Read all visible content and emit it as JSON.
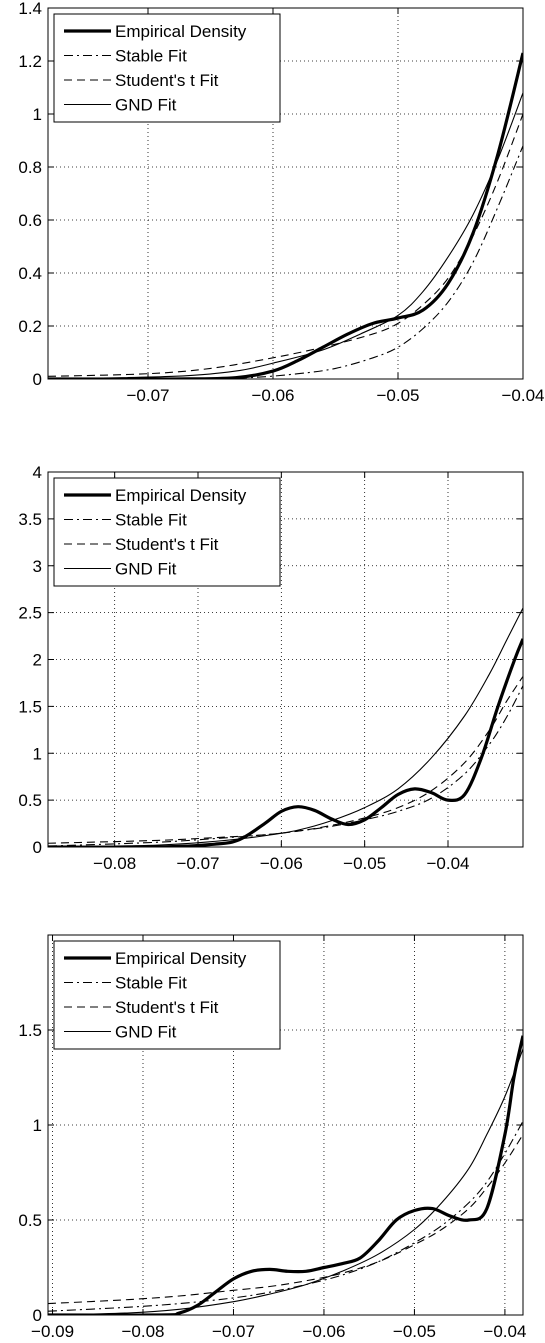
{
  "chart_data": [
    {
      "type": "line",
      "xlim": [
        -0.078,
        -0.04
      ],
      "ylim": [
        0,
        1.4
      ],
      "xticks": [
        -0.07,
        -0.06,
        -0.05,
        -0.04
      ],
      "xtick_labels": [
        "−0.07",
        "−0.06",
        "−0.05",
        "−0.04"
      ],
      "yticks": [
        0,
        0.2,
        0.4,
        0.6,
        0.8,
        1,
        1.2,
        1.4
      ],
      "ytick_labels": [
        "0",
        "0.2",
        "0.4",
        "0.6",
        "0.8",
        "1",
        "1.2",
        "1.4"
      ],
      "grid": true,
      "legend_position": "top-left",
      "series": [
        {
          "name": "Empirical Density",
          "style": "thick-solid",
          "x": [
            -0.078,
            -0.068,
            -0.063,
            -0.06,
            -0.058,
            -0.056,
            -0.054,
            -0.052,
            -0.05,
            -0.048,
            -0.046,
            -0.044,
            -0.042,
            -0.04
          ],
          "y": [
            0,
            0,
            0.005,
            0.03,
            0.07,
            0.12,
            0.17,
            0.21,
            0.23,
            0.26,
            0.36,
            0.55,
            0.85,
            1.23
          ]
        },
        {
          "name": "Stable Fit",
          "style": "dash-dot",
          "x": [
            -0.078,
            -0.068,
            -0.062,
            -0.058,
            -0.055,
            -0.052,
            -0.05,
            -0.048,
            -0.046,
            -0.044,
            -0.042,
            -0.04
          ],
          "y": [
            0,
            0,
            0.005,
            0.02,
            0.04,
            0.08,
            0.12,
            0.19,
            0.29,
            0.44,
            0.65,
            0.88
          ]
        },
        {
          "name": "Student's t Fit",
          "style": "dashed",
          "x": [
            -0.078,
            -0.07,
            -0.065,
            -0.06,
            -0.056,
            -0.052,
            -0.05,
            -0.048,
            -0.046,
            -0.044,
            -0.042,
            -0.04
          ],
          "y": [
            0.01,
            0.02,
            0.04,
            0.08,
            0.12,
            0.17,
            0.21,
            0.28,
            0.38,
            0.54,
            0.75,
            1.0
          ]
        },
        {
          "name": "GND Fit",
          "style": "thin-solid",
          "x": [
            -0.078,
            -0.068,
            -0.063,
            -0.06,
            -0.056,
            -0.053,
            -0.05,
            -0.048,
            -0.046,
            -0.044,
            -0.042,
            -0.04
          ],
          "y": [
            0,
            0.01,
            0.03,
            0.06,
            0.11,
            0.17,
            0.24,
            0.33,
            0.46,
            0.62,
            0.83,
            1.08
          ]
        }
      ]
    },
    {
      "type": "line",
      "xlim": [
        -0.088,
        -0.031
      ],
      "ylim": [
        0,
        4
      ],
      "xticks": [
        -0.08,
        -0.07,
        -0.06,
        -0.05,
        -0.04
      ],
      "xtick_labels": [
        "−0.08",
        "−0.07",
        "−0.06",
        "−0.05",
        "−0.04"
      ],
      "yticks": [
        0,
        0.5,
        1,
        1.5,
        2,
        2.5,
        3,
        3.5,
        4
      ],
      "ytick_labels": [
        "0",
        "0.5",
        "1",
        "1.5",
        "2",
        "2.5",
        "3",
        "3.5",
        "4"
      ],
      "grid": true,
      "legend_position": "top-left",
      "series": [
        {
          "name": "Empirical Density",
          "style": "thick-solid",
          "x": [
            -0.088,
            -0.075,
            -0.068,
            -0.065,
            -0.062,
            -0.06,
            -0.058,
            -0.056,
            -0.054,
            -0.052,
            -0.05,
            -0.048,
            -0.046,
            -0.044,
            -0.042,
            -0.04,
            -0.038,
            -0.036,
            -0.034,
            -0.032,
            -0.031
          ],
          "y": [
            0,
            0,
            0.03,
            0.08,
            0.25,
            0.38,
            0.43,
            0.39,
            0.3,
            0.24,
            0.29,
            0.42,
            0.56,
            0.62,
            0.58,
            0.5,
            0.56,
            0.95,
            1.5,
            2.0,
            2.22
          ]
        },
        {
          "name": "Stable Fit",
          "style": "dash-dot",
          "x": [
            -0.088,
            -0.075,
            -0.068,
            -0.062,
            -0.058,
            -0.054,
            -0.05,
            -0.046,
            -0.042,
            -0.038,
            -0.035,
            -0.033,
            -0.031
          ],
          "y": [
            0.01,
            0.05,
            0.09,
            0.13,
            0.17,
            0.22,
            0.29,
            0.38,
            0.52,
            0.78,
            1.1,
            1.38,
            1.72
          ]
        },
        {
          "name": "Student's t Fit",
          "style": "dashed",
          "x": [
            -0.088,
            -0.075,
            -0.068,
            -0.062,
            -0.058,
            -0.054,
            -0.05,
            -0.046,
            -0.042,
            -0.038,
            -0.035,
            -0.033,
            -0.031
          ],
          "y": [
            0.04,
            0.07,
            0.1,
            0.13,
            0.17,
            0.23,
            0.31,
            0.42,
            0.6,
            0.9,
            1.25,
            1.55,
            1.82
          ]
        },
        {
          "name": "GND Fit",
          "style": "thin-solid",
          "x": [
            -0.088,
            -0.075,
            -0.068,
            -0.062,
            -0.058,
            -0.054,
            -0.05,
            -0.046,
            -0.042,
            -0.038,
            -0.035,
            -0.033,
            -0.031
          ],
          "y": [
            0,
            0.02,
            0.06,
            0.12,
            0.18,
            0.28,
            0.42,
            0.62,
            0.95,
            1.4,
            1.85,
            2.2,
            2.55
          ]
        }
      ]
    },
    {
      "type": "line",
      "xlim": [
        -0.0905,
        -0.038
      ],
      "ylim": [
        0,
        2
      ],
      "xticks": [
        -0.09,
        -0.08,
        -0.07,
        -0.06,
        -0.05,
        -0.04
      ],
      "xtick_labels": [
        "−0.09",
        "−0.08",
        "−0.07",
        "−0.06",
        "−0.05",
        "−0.04"
      ],
      "yticks": [
        0,
        0.5,
        1,
        1.5
      ],
      "ytick_labels": [
        "0",
        "0.5",
        "1",
        "1.5"
      ],
      "grid": true,
      "legend_position": "top-left",
      "series": [
        {
          "name": "Empirical Density",
          "style": "thick-solid",
          "x": [
            -0.0905,
            -0.078,
            -0.076,
            -0.074,
            -0.072,
            -0.07,
            -0.068,
            -0.066,
            -0.064,
            -0.062,
            -0.06,
            -0.058,
            -0.056,
            -0.054,
            -0.052,
            -0.05,
            -0.048,
            -0.046,
            -0.044,
            -0.042,
            -0.04,
            -0.039,
            -0.038
          ],
          "y": [
            0,
            0,
            0.01,
            0.05,
            0.12,
            0.19,
            0.23,
            0.24,
            0.23,
            0.23,
            0.25,
            0.27,
            0.3,
            0.39,
            0.5,
            0.55,
            0.56,
            0.52,
            0.5,
            0.56,
            0.95,
            1.25,
            1.47
          ]
        },
        {
          "name": "Stable Fit",
          "style": "dash-dot",
          "x": [
            -0.0905,
            -0.082,
            -0.076,
            -0.07,
            -0.066,
            -0.062,
            -0.058,
            -0.054,
            -0.05,
            -0.047,
            -0.044,
            -0.042,
            -0.04,
            -0.038
          ],
          "y": [
            0.02,
            0.04,
            0.06,
            0.09,
            0.12,
            0.16,
            0.21,
            0.28,
            0.38,
            0.47,
            0.59,
            0.7,
            0.85,
            1.02
          ]
        },
        {
          "name": "Student's t Fit",
          "style": "dashed",
          "x": [
            -0.0905,
            -0.082,
            -0.076,
            -0.07,
            -0.066,
            -0.062,
            -0.058,
            -0.054,
            -0.05,
            -0.047,
            -0.044,
            -0.042,
            -0.04,
            -0.038
          ],
          "y": [
            0.06,
            0.08,
            0.1,
            0.13,
            0.15,
            0.18,
            0.22,
            0.28,
            0.37,
            0.45,
            0.56,
            0.67,
            0.8,
            0.95
          ]
        },
        {
          "name": "GND Fit",
          "style": "thin-solid",
          "x": [
            -0.0905,
            -0.082,
            -0.076,
            -0.07,
            -0.066,
            -0.062,
            -0.058,
            -0.054,
            -0.05,
            -0.047,
            -0.044,
            -0.042,
            -0.04,
            -0.038
          ],
          "y": [
            0,
            0.01,
            0.03,
            0.07,
            0.11,
            0.16,
            0.23,
            0.32,
            0.45,
            0.59,
            0.77,
            0.95,
            1.15,
            1.4
          ]
        }
      ]
    }
  ]
}
